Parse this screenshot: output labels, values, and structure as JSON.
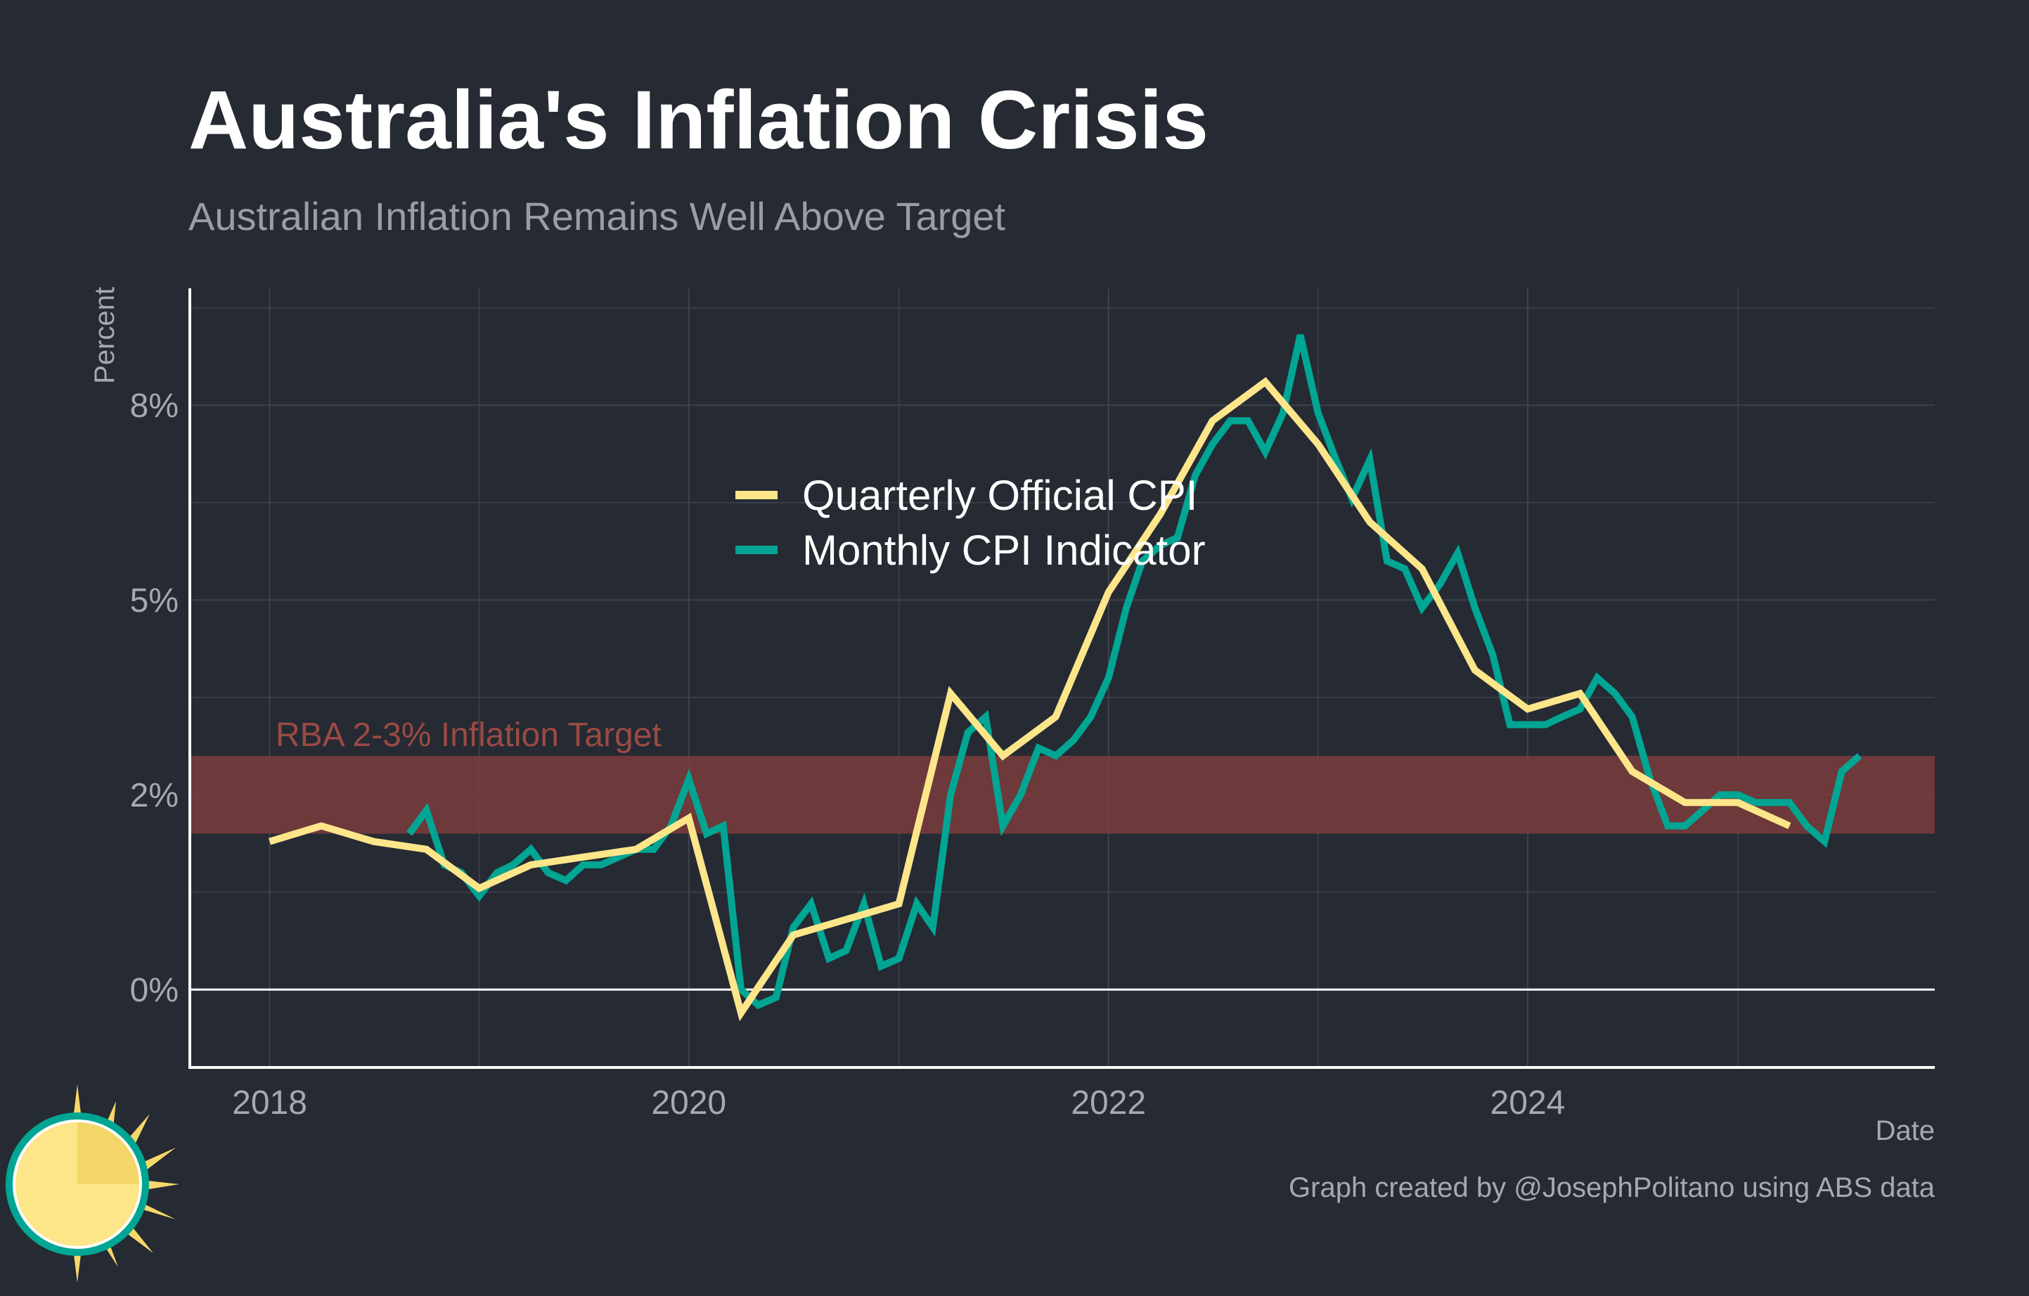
{
  "title": "Australia's Inflation Crisis",
  "subtitle": "Australian Inflation Remains Well Above Target",
  "caption": "Graph created by @JosephPolitano using ABS data",
  "colors": {
    "background": "#252a33",
    "quarterly": "#fde68a",
    "monthly": "#00a693",
    "band": "#7a3c3c",
    "band_label": "#9b4a44",
    "grid": "#3e434b",
    "axis": "#ffffff"
  },
  "logo": {
    "icon": "sun-logo-icon"
  },
  "chart_data": {
    "type": "line",
    "xlabel": "Date",
    "ylabel": "Percent",
    "x_ticks": [
      "2018",
      "2020",
      "2022",
      "2024"
    ],
    "y_ticks": [
      {
        "value": 0,
        "label": "0%"
      },
      {
        "value": 2.5,
        "label": "2%"
      },
      {
        "value": 5,
        "label": "5%"
      },
      {
        "value": 7.5,
        "label": "8%"
      }
    ],
    "xlim": [
      "2017-08-15",
      "2025-12-10"
    ],
    "ylim": [
      -1.0,
      9.0
    ],
    "grid": true,
    "legend_position": "top-center",
    "band": {
      "label": "RBA 2-3% Inflation Target",
      "ymin": 2.0,
      "ymax": 3.0
    },
    "series": [
      {
        "name": "Quarterly Official CPI",
        "color": "#fde68a",
        "points": [
          [
            "2018-01-01",
            1.9
          ],
          [
            "2018-04-01",
            2.1
          ],
          [
            "2018-07-01",
            1.9
          ],
          [
            "2018-10-01",
            1.8
          ],
          [
            "2019-01-01",
            1.3
          ],
          [
            "2019-04-01",
            1.6
          ],
          [
            "2019-07-01",
            1.7
          ],
          [
            "2019-10-01",
            1.8
          ],
          [
            "2020-01-01",
            2.2
          ],
          [
            "2020-04-01",
            -0.3
          ],
          [
            "2020-07-01",
            0.7
          ],
          [
            "2020-10-01",
            0.9
          ],
          [
            "2021-01-01",
            1.1
          ],
          [
            "2021-04-01",
            3.8
          ],
          [
            "2021-07-01",
            3.0
          ],
          [
            "2021-10-01",
            3.5
          ],
          [
            "2022-01-01",
            5.1
          ],
          [
            "2022-04-01",
            6.1
          ],
          [
            "2022-07-01",
            7.3
          ],
          [
            "2022-10-01",
            7.8
          ],
          [
            "2023-01-01",
            7.0
          ],
          [
            "2023-04-01",
            6.0
          ],
          [
            "2023-07-01",
            5.4
          ],
          [
            "2023-10-01",
            4.1
          ],
          [
            "2024-01-01",
            3.6
          ],
          [
            "2024-04-01",
            3.8
          ],
          [
            "2024-07-01",
            2.8
          ],
          [
            "2024-10-01",
            2.4
          ],
          [
            "2025-01-01",
            2.4
          ],
          [
            "2025-04-01",
            2.1
          ]
        ]
      },
      {
        "name": "Monthly CPI Indicator",
        "color": "#00a693",
        "points": [
          [
            "2018-09-01",
            2.0
          ],
          [
            "2018-10-01",
            2.3
          ],
          [
            "2018-11-01",
            1.6
          ],
          [
            "2018-12-01",
            1.5
          ],
          [
            "2019-01-01",
            1.2
          ],
          [
            "2019-02-01",
            1.5
          ],
          [
            "2019-03-01",
            1.6
          ],
          [
            "2019-04-01",
            1.8
          ],
          [
            "2019-05-01",
            1.5
          ],
          [
            "2019-06-01",
            1.4
          ],
          [
            "2019-07-01",
            1.6
          ],
          [
            "2019-08-01",
            1.6
          ],
          [
            "2019-09-01",
            1.7
          ],
          [
            "2019-10-01",
            1.8
          ],
          [
            "2019-11-01",
            1.8
          ],
          [
            "2019-12-01",
            2.1
          ],
          [
            "2020-01-01",
            2.7
          ],
          [
            "2020-02-01",
            2.0
          ],
          [
            "2020-03-01",
            2.1
          ],
          [
            "2020-04-01",
            0.0
          ],
          [
            "2020-05-01",
            -0.2
          ],
          [
            "2020-06-01",
            -0.1
          ],
          [
            "2020-07-01",
            0.8
          ],
          [
            "2020-08-01",
            1.1
          ],
          [
            "2020-09-01",
            0.4
          ],
          [
            "2020-10-01",
            0.5
          ],
          [
            "2020-11-01",
            1.1
          ],
          [
            "2020-12-01",
            0.3
          ],
          [
            "2021-01-01",
            0.4
          ],
          [
            "2021-02-01",
            1.1
          ],
          [
            "2021-03-01",
            0.8
          ],
          [
            "2021-04-01",
            2.5
          ],
          [
            "2021-05-01",
            3.3
          ],
          [
            "2021-06-01",
            3.5
          ],
          [
            "2021-07-01",
            2.1
          ],
          [
            "2021-08-01",
            2.5
          ],
          [
            "2021-09-01",
            3.1
          ],
          [
            "2021-10-01",
            3.0
          ],
          [
            "2021-11-01",
            3.2
          ],
          [
            "2021-12-01",
            3.5
          ],
          [
            "2022-01-01",
            4.0
          ],
          [
            "2022-02-01",
            4.9
          ],
          [
            "2022-03-01",
            5.5
          ],
          [
            "2022-04-01",
            5.7
          ],
          [
            "2022-05-01",
            5.8
          ],
          [
            "2022-06-01",
            6.6
          ],
          [
            "2022-07-01",
            7.0
          ],
          [
            "2022-08-01",
            7.3
          ],
          [
            "2022-09-01",
            7.3
          ],
          [
            "2022-10-01",
            6.9
          ],
          [
            "2022-11-01",
            7.4
          ],
          [
            "2022-12-01",
            8.4
          ],
          [
            "2023-01-01",
            7.4
          ],
          [
            "2023-02-01",
            6.8
          ],
          [
            "2023-03-01",
            6.3
          ],
          [
            "2023-04-01",
            6.8
          ],
          [
            "2023-05-01",
            5.5
          ],
          [
            "2023-06-01",
            5.4
          ],
          [
            "2023-07-01",
            4.9
          ],
          [
            "2023-08-01",
            5.2
          ],
          [
            "2023-09-01",
            5.6
          ],
          [
            "2023-10-01",
            4.9
          ],
          [
            "2023-11-01",
            4.3
          ],
          [
            "2023-12-01",
            3.4
          ],
          [
            "2024-01-01",
            3.4
          ],
          [
            "2024-02-01",
            3.4
          ],
          [
            "2024-03-01",
            3.5
          ],
          [
            "2024-04-01",
            3.6
          ],
          [
            "2024-05-01",
            4.0
          ],
          [
            "2024-06-01",
            3.8
          ],
          [
            "2024-07-01",
            3.5
          ],
          [
            "2024-08-01",
            2.7
          ],
          [
            "2024-09-01",
            2.1
          ],
          [
            "2024-10-01",
            2.1
          ],
          [
            "2024-11-01",
            2.3
          ],
          [
            "2024-12-01",
            2.5
          ],
          [
            "2025-01-01",
            2.5
          ],
          [
            "2025-02-01",
            2.4
          ],
          [
            "2025-03-01",
            2.4
          ],
          [
            "2025-04-01",
            2.4
          ],
          [
            "2025-05-01",
            2.1
          ],
          [
            "2025-06-01",
            1.9
          ],
          [
            "2025-07-01",
            2.8
          ],
          [
            "2025-08-01",
            3.0
          ]
        ]
      }
    ]
  }
}
